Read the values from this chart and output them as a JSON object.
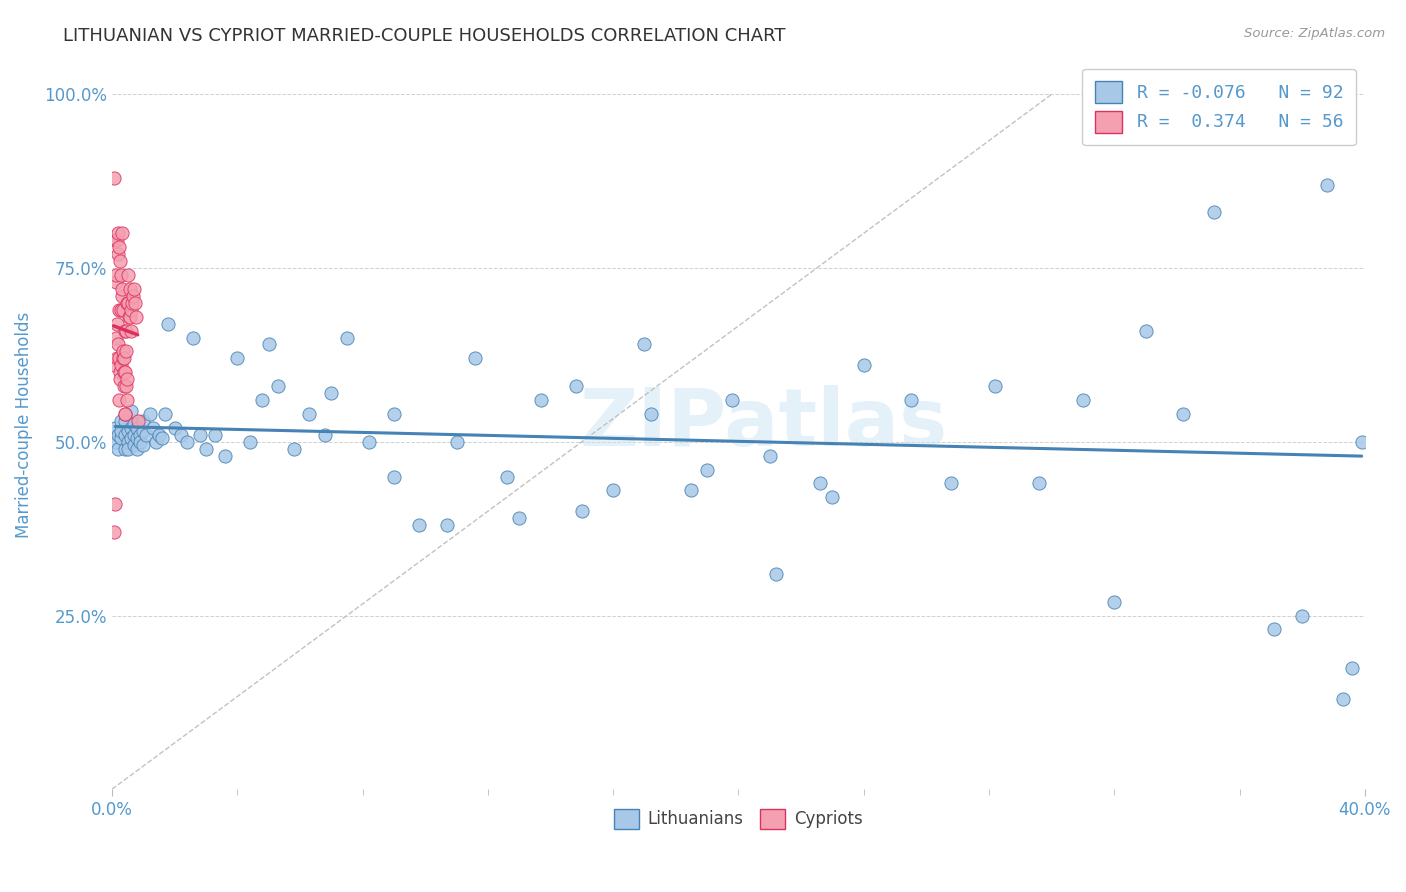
{
  "title": "LITHUANIAN VS CYPRIOT MARRIED-COUPLE HOUSEHOLDS CORRELATION CHART",
  "source": "Source: ZipAtlas.com",
  "ylabel": "Married-couple Households",
  "xlim": [
    0.0,
    0.4
  ],
  "ylim": [
    0.0,
    1.05
  ],
  "ytick_vals": [
    0.25,
    0.5,
    0.75,
    1.0
  ],
  "legend_R_lith": "-0.076",
  "legend_N_lith": "92",
  "legend_R_cypr": "0.374",
  "legend_N_cypr": "56",
  "color_lith": "#a8c8e8",
  "color_cypr": "#f4a0b0",
  "line_color_lith": "#4682b4",
  "line_color_cypr": "#dc3060",
  "watermark": "ZIPatlas",
  "background_color": "#ffffff",
  "grid_color": "#cccccc",
  "title_color": "#333333",
  "axis_label_color": "#5599cc",
  "lith_x": [
    0.001,
    0.001,
    0.002,
    0.002,
    0.003,
    0.003,
    0.003,
    0.004,
    0.004,
    0.004,
    0.005,
    0.005,
    0.005,
    0.006,
    0.006,
    0.006,
    0.007,
    0.007,
    0.007,
    0.008,
    0.008,
    0.008,
    0.009,
    0.009,
    0.01,
    0.01,
    0.01,
    0.011,
    0.012,
    0.013,
    0.014,
    0.015,
    0.016,
    0.017,
    0.018,
    0.02,
    0.022,
    0.024,
    0.026,
    0.028,
    0.03,
    0.033,
    0.036,
    0.04,
    0.044,
    0.048,
    0.053,
    0.058,
    0.063,
    0.068,
    0.075,
    0.082,
    0.09,
    0.098,
    0.107,
    0.116,
    0.126,
    0.137,
    0.148,
    0.16,
    0.172,
    0.185,
    0.198,
    0.212,
    0.226,
    0.24,
    0.255,
    0.268,
    0.282,
    0.296,
    0.31,
    0.32,
    0.33,
    0.342,
    0.352,
    0.362,
    0.371,
    0.38,
    0.388,
    0.393,
    0.396,
    0.399,
    0.05,
    0.07,
    0.09,
    0.11,
    0.13,
    0.15,
    0.17,
    0.19,
    0.21,
    0.23
  ],
  "lith_y": [
    0.52,
    0.5,
    0.51,
    0.49,
    0.53,
    0.505,
    0.515,
    0.49,
    0.51,
    0.53,
    0.5,
    0.515,
    0.49,
    0.52,
    0.505,
    0.545,
    0.51,
    0.495,
    0.525,
    0.505,
    0.49,
    0.52,
    0.51,
    0.5,
    0.515,
    0.495,
    0.53,
    0.51,
    0.54,
    0.52,
    0.5,
    0.51,
    0.505,
    0.54,
    0.67,
    0.52,
    0.51,
    0.5,
    0.65,
    0.51,
    0.49,
    0.51,
    0.48,
    0.62,
    0.5,
    0.56,
    0.58,
    0.49,
    0.54,
    0.51,
    0.65,
    0.5,
    0.54,
    0.38,
    0.38,
    0.62,
    0.45,
    0.56,
    0.58,
    0.43,
    0.54,
    0.43,
    0.56,
    0.31,
    0.44,
    0.61,
    0.56,
    0.44,
    0.58,
    0.44,
    0.56,
    0.27,
    0.66,
    0.54,
    0.83,
    0.95,
    0.23,
    0.25,
    0.87,
    0.13,
    0.175,
    0.5,
    0.64,
    0.57,
    0.45,
    0.5,
    0.39,
    0.4,
    0.64,
    0.46,
    0.48,
    0.42
  ],
  "cypr_x": [
    0.0005,
    0.0007,
    0.0008,
    0.001,
    0.001,
    0.0012,
    0.0013,
    0.0014,
    0.0015,
    0.0016,
    0.0017,
    0.0018,
    0.0019,
    0.002,
    0.0021,
    0.0022,
    0.0023,
    0.0024,
    0.0025,
    0.0026,
    0.0027,
    0.0028,
    0.0029,
    0.003,
    0.0031,
    0.0032,
    0.0033,
    0.0034,
    0.0035,
    0.0036,
    0.0037,
    0.0038,
    0.0039,
    0.004,
    0.0041,
    0.0042,
    0.0043,
    0.0044,
    0.0045,
    0.0046,
    0.0047,
    0.0048,
    0.0049,
    0.005,
    0.0052,
    0.0054,
    0.0056,
    0.0058,
    0.006,
    0.0062,
    0.0064,
    0.0066,
    0.007,
    0.0074,
    0.0078,
    0.0082
  ],
  "cypr_y": [
    0.88,
    0.37,
    0.61,
    0.41,
    0.79,
    0.73,
    0.74,
    0.65,
    0.79,
    0.62,
    0.67,
    0.77,
    0.8,
    0.64,
    0.69,
    0.62,
    0.56,
    0.78,
    0.6,
    0.59,
    0.76,
    0.61,
    0.74,
    0.69,
    0.8,
    0.71,
    0.72,
    0.62,
    0.69,
    0.63,
    0.6,
    0.58,
    0.62,
    0.66,
    0.54,
    0.6,
    0.54,
    0.58,
    0.63,
    0.66,
    0.7,
    0.59,
    0.56,
    0.74,
    0.7,
    0.68,
    0.68,
    0.72,
    0.69,
    0.66,
    0.7,
    0.71,
    0.72,
    0.7,
    0.68,
    0.53
  ],
  "diag_line_x": [
    0.0,
    0.3
  ],
  "diag_line_y": [
    0.0,
    1.0
  ]
}
